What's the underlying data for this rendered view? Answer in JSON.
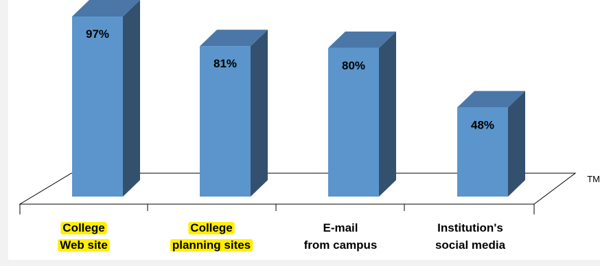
{
  "chart_data": {
    "type": "bar",
    "categories": [
      [
        "College",
        "Web site"
      ],
      [
        "College",
        "planning sites"
      ],
      [
        "E-mail",
        "from campus"
      ],
      [
        "Institution's",
        "social media"
      ]
    ],
    "values": [
      97,
      81,
      80,
      48
    ],
    "data_labels": [
      "97%",
      "81%",
      "80%",
      "48%"
    ],
    "highlighted_categories": [
      0,
      1
    ],
    "ylim": [
      0,
      100
    ],
    "grid": false,
    "style": "3d",
    "colors": {
      "bar_front": "#5b95cc",
      "bar_side": "#33506f",
      "bar_top": "#4a77a8",
      "highlight": "#ffef00",
      "text": "#000000"
    }
  },
  "trademark": "TM"
}
